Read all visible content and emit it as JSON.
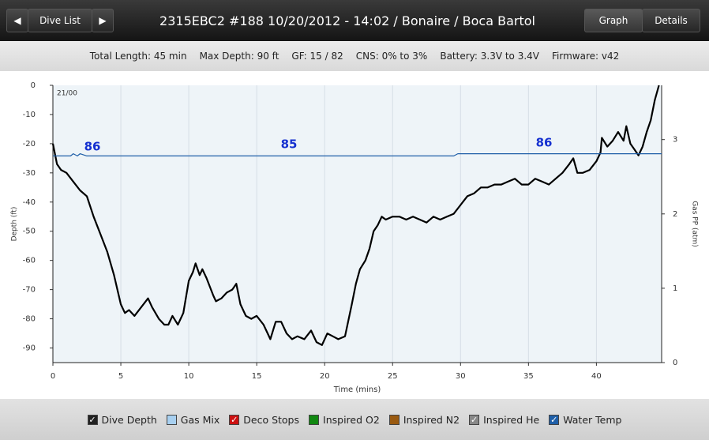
{
  "header": {
    "nav_label": "Dive List",
    "title": "2315EBC2 #188 10/20/2012 - 14:02  / Bonaire / Boca Bartol",
    "tabs": [
      "Graph",
      "Details"
    ]
  },
  "info": [
    "Total Length: 45 min",
    "Max Depth: 90 ft",
    "GF: 15 / 82",
    "CNS: 0% to 3%",
    "Battery: 3.3V to 3.4V",
    "Firmware: v42"
  ],
  "chart_data": {
    "type": "line",
    "corner_label": "21/00",
    "x_label": "Time (mins)",
    "y_label": "Depth (ft)",
    "y2_label": "Gas PP (atm)",
    "xlim": [
      0,
      44.8
    ],
    "ylim": [
      -95,
      0
    ],
    "y2lim": [
      0,
      3.73
    ],
    "xticks": [
      0,
      5,
      10,
      15,
      20,
      25,
      30,
      35,
      40
    ],
    "yticks": [
      0,
      -10,
      -20,
      -30,
      -40,
      -50,
      -60,
      -70,
      -80,
      -90
    ],
    "y2ticks": [
      0,
      1,
      2,
      3
    ],
    "grid": true,
    "series": [
      {
        "name": "Dive Depth",
        "color": "#000000",
        "axis": "y",
        "x": [
          0,
          0.3,
          0.6,
          1,
          1.5,
          2,
          2.5,
          3,
          3.5,
          4,
          4.5,
          5,
          5.3,
          5.6,
          6,
          6.5,
          7,
          7.3,
          7.8,
          8.2,
          8.5,
          8.8,
          9.2,
          9.6,
          10,
          10.3,
          10.5,
          10.8,
          11,
          11.3,
          11.8,
          12,
          12.4,
          12.8,
          13.2,
          13.5,
          13.8,
          14.2,
          14.6,
          15,
          15.5,
          16,
          16.4,
          16.8,
          17.2,
          17.6,
          18,
          18.5,
          19,
          19.4,
          19.8,
          20.2,
          20.6,
          21,
          21.5,
          22,
          22.3,
          22.6,
          23,
          23.3,
          23.6,
          23.9,
          24.2,
          24.5,
          25,
          25.5,
          26,
          26.5,
          27,
          27.5,
          28,
          28.5,
          29,
          29.5,
          30,
          30.5,
          31,
          31.5,
          32,
          32.5,
          33,
          33.5,
          34,
          34.5,
          35,
          35.5,
          36,
          36.5,
          37,
          37.5,
          38,
          38.3,
          38.6,
          39,
          39.5,
          40,
          40.3,
          40.4,
          40.8,
          41.2,
          41.6,
          42,
          42.2,
          42.5,
          42.8,
          43.1,
          43.4,
          43.7,
          44,
          44.3,
          44.6
        ],
        "values": [
          -20,
          -27,
          -29,
          -30,
          -33,
          -36,
          -38,
          -45,
          -51,
          -57,
          -65,
          -75,
          -78,
          -77,
          -79,
          -76,
          -73,
          -76,
          -80,
          -82,
          -82,
          -79,
          -82,
          -78,
          -67,
          -64,
          -61,
          -65,
          -63,
          -66,
          -72,
          -74,
          -73,
          -71,
          -70,
          -68,
          -75,
          -79,
          -80,
          -79,
          -82,
          -87,
          -81,
          -81,
          -85,
          -87,
          -86,
          -87,
          -84,
          -88,
          -89,
          -85,
          -86,
          -87,
          -86,
          -75,
          -68,
          -63,
          -60,
          -56,
          -50,
          -48,
          -45,
          -46,
          -45,
          -45,
          -46,
          -45,
          -46,
          -47,
          -45,
          -46,
          -45,
          -44,
          -41,
          -38,
          -37,
          -35,
          -35,
          -34,
          -34,
          -33,
          -32,
          -34,
          -34,
          -32,
          -33,
          -34,
          -32,
          -30,
          -27,
          -25,
          -30,
          -30,
          -29,
          -26,
          -23,
          -18,
          -21,
          -19,
          -16,
          -19,
          -14,
          -20,
          -22,
          -24,
          -21,
          -16,
          -12,
          -5,
          0
        ]
      },
      {
        "name": "Water Temp",
        "color": "#1f5fa8",
        "axis": "y2",
        "x": [
          0,
          1.3,
          1.5,
          1.8,
          2,
          2.5,
          29.5,
          29.8,
          44.8
        ],
        "values": [
          2.78,
          2.78,
          2.81,
          2.78,
          2.81,
          2.78,
          2.78,
          2.81,
          2.81
        ]
      }
    ],
    "annotations": [
      "86",
      "85",
      "86"
    ],
    "legend": [
      {
        "name": "Dive Depth",
        "color": "#222222",
        "checked": true
      },
      {
        "name": "Gas Mix",
        "color": "#a8d0f0",
        "checked": false
      },
      {
        "name": "Deco Stops",
        "color": "#cc1111",
        "checked": true
      },
      {
        "name": "Inspired O2",
        "color": "#118811",
        "checked": false
      },
      {
        "name": "Inspired N2",
        "color": "#9a5a10",
        "checked": false
      },
      {
        "name": "Inspired He",
        "color": "#888888",
        "checked": true
      },
      {
        "name": "Water Temp",
        "color": "#1f5fa8",
        "checked": true
      }
    ]
  }
}
